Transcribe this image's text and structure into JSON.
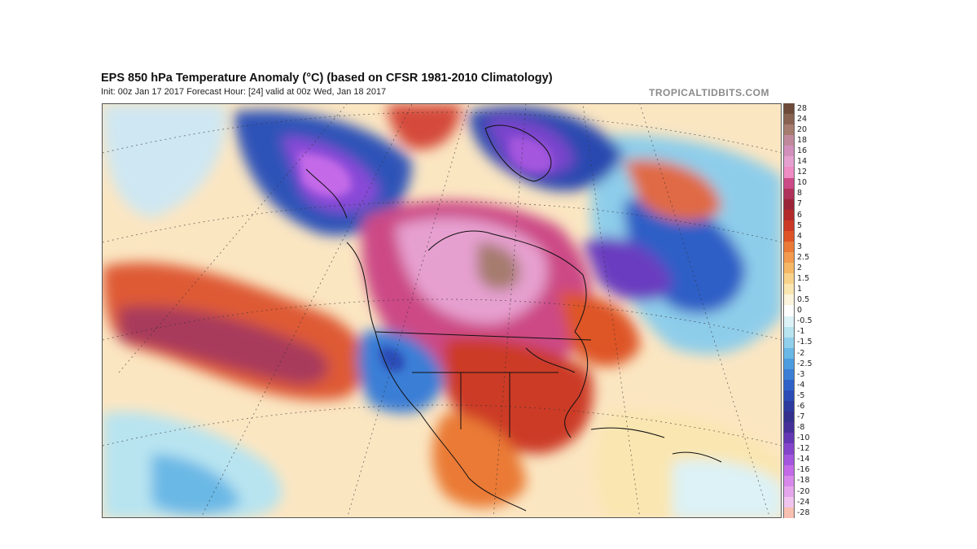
{
  "header": {
    "title": "EPS 850 hPa Temperature Anomaly (°C) (based on CFSR 1981-2010 Climatology)",
    "subtitle": "Init: 00z Jan 17 2017   Forecast Hour: [24]   valid at 00z Wed, Jan 18 2017",
    "brand": "TROPICALTIDBITS.COM"
  },
  "colorbar": {
    "entries": [
      {
        "label": "28",
        "color": "#6e4a3a"
      },
      {
        "label": "24",
        "color": "#8a6252"
      },
      {
        "label": "20",
        "color": "#a67c6e"
      },
      {
        "label": "18",
        "color": "#c08a9c"
      },
      {
        "label": "16",
        "color": "#d28fbc"
      },
      {
        "label": "14",
        "color": "#e6a0d0"
      },
      {
        "label": "12",
        "color": "#ee8cc4"
      },
      {
        "label": "10",
        "color": "#cc4a86"
      },
      {
        "label": "8",
        "color": "#b0325a"
      },
      {
        "label": "7",
        "color": "#9c2438"
      },
      {
        "label": "6",
        "color": "#b42a2a"
      },
      {
        "label": "5",
        "color": "#cc3a26"
      },
      {
        "label": "4",
        "color": "#de5426"
      },
      {
        "label": "3",
        "color": "#ea7a36"
      },
      {
        "label": "2.5",
        "color": "#f29a4e"
      },
      {
        "label": "2",
        "color": "#f6b866"
      },
      {
        "label": "1.5",
        "color": "#f8d28a"
      },
      {
        "label": "1",
        "color": "#fae6b0"
      },
      {
        "label": "0.5",
        "color": "#fcf4dc"
      },
      {
        "label": "0",
        "color": "#ffffff"
      },
      {
        "label": "-0.5",
        "color": "#dcf2f6"
      },
      {
        "label": "-1",
        "color": "#b8e4f0"
      },
      {
        "label": "-1.5",
        "color": "#90d0ec"
      },
      {
        "label": "-2",
        "color": "#6ab8e6"
      },
      {
        "label": "-2.5",
        "color": "#4c9ce0"
      },
      {
        "label": "-3",
        "color": "#3a7ed6"
      },
      {
        "label": "-4",
        "color": "#2e62c8"
      },
      {
        "label": "-5",
        "color": "#2a4cb6"
      },
      {
        "label": "-6",
        "color": "#2c3aa0"
      },
      {
        "label": "-7",
        "color": "#33308e"
      },
      {
        "label": "-8",
        "color": "#45309a"
      },
      {
        "label": "-10",
        "color": "#6438b4"
      },
      {
        "label": "-12",
        "color": "#8444cc"
      },
      {
        "label": "-14",
        "color": "#a456de"
      },
      {
        "label": "-16",
        "color": "#c46ae8"
      },
      {
        "label": "-18",
        "color": "#d888ea"
      },
      {
        "label": "-20",
        "color": "#e6a6ec"
      },
      {
        "label": "-24",
        "color": "#f0c4ee"
      },
      {
        "label": "-28",
        "color": "#f8c0b0"
      }
    ]
  }
}
